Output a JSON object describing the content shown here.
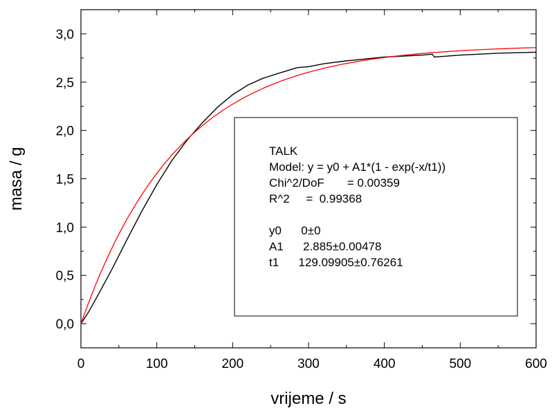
{
  "chart_data": {
    "type": "line",
    "title": "",
    "xlabel": "vrijeme / s",
    "ylabel": "masa / g",
    "xlim": [
      0,
      600
    ],
    "ylim": [
      -0.25,
      3.25
    ],
    "x_ticks": [
      "0",
      "100",
      "200",
      "300",
      "400",
      "500",
      "600"
    ],
    "x_tick_values": [
      0,
      100,
      200,
      300,
      400,
      500,
      600
    ],
    "y_ticks": [
      "0,0",
      "0,5",
      "1,0",
      "1,5",
      "2,0",
      "2,5",
      "3,0"
    ],
    "y_tick_values": [
      0,
      0.5,
      1.0,
      1.5,
      2.0,
      2.5,
      3.0
    ],
    "grid": false,
    "series": [
      {
        "color": "#000000",
        "x": [
          0,
          10,
          20,
          40,
          60,
          80,
          100,
          120,
          140,
          160,
          180,
          200,
          220,
          240,
          260,
          285,
          300,
          320,
          350,
          400,
          450,
          463,
          466,
          500,
          550,
          600
        ],
        "y": [
          0.0,
          0.12,
          0.26,
          0.55,
          0.86,
          1.16,
          1.44,
          1.69,
          1.9,
          2.08,
          2.24,
          2.37,
          2.47,
          2.54,
          2.59,
          2.65,
          2.66,
          2.69,
          2.72,
          2.76,
          2.78,
          2.79,
          2.76,
          2.78,
          2.8,
          2.81
        ]
      },
      {
        "color": "#ff0000",
        "model": {
          "y0": 0,
          "A1": 2.885,
          "t1": 129.09905
        },
        "x": [
          0,
          600
        ]
      }
    ],
    "legend": {
      "position": "center-right",
      "lines": [
        "TALK",
        "Model: y = y0 + A1*(1 - exp(-x/t1))",
        "Chi^2/DoF       = 0.00359",
        "R^2     =  0.99368",
        "",
        "y0      0±0",
        "A1      2.885±0.00478",
        "t1      129.09905±0.76261"
      ]
    }
  }
}
